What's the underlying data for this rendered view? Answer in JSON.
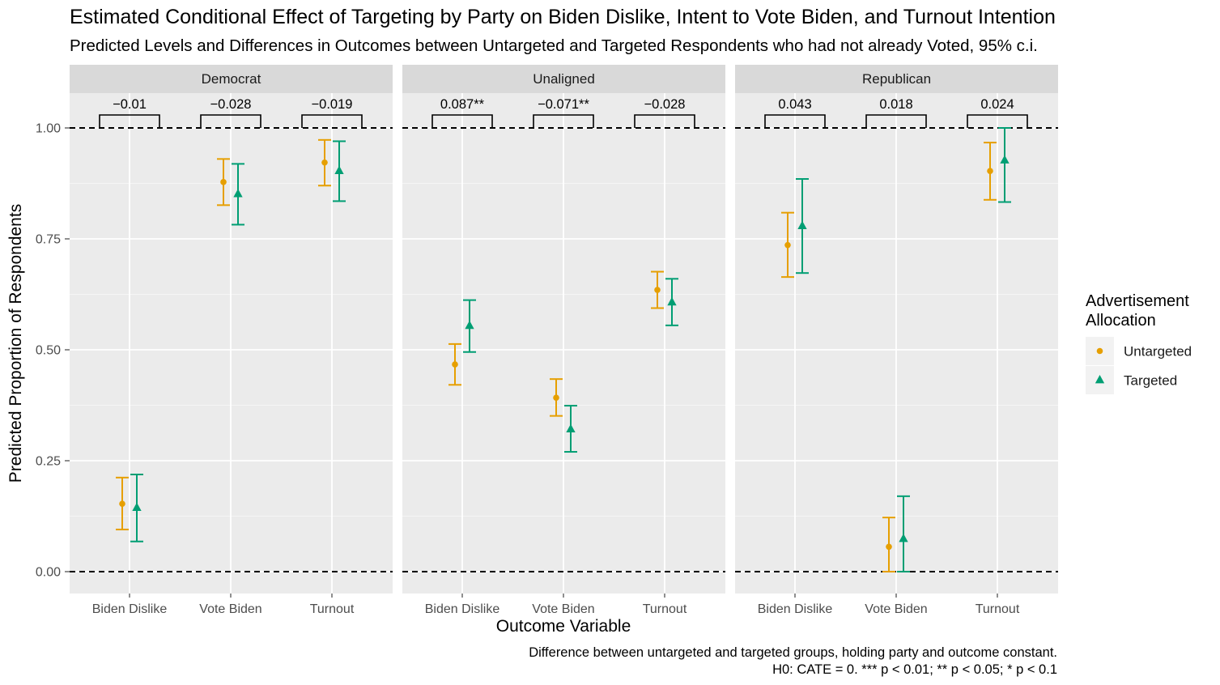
{
  "chart_data": {
    "type": "scatter",
    "title": "Estimated Conditional Effect of Targeting by Party on Biden Dislike, Intent to Vote Biden, and Turnout Intention",
    "subtitle": "Predicted Levels and Differences in Outcomes between Untargeted and Targeted Respondents who had not already Voted, 95% c.i.",
    "xlabel": "Outcome  Variable",
    "ylabel": "Predicted Proportion of Respondents",
    "ylim": [
      -0.05,
      1.07
    ],
    "yticks": [
      "0.00",
      "0.25",
      "0.50",
      "0.75",
      "1.00"
    ],
    "ytick_values": [
      0,
      0.25,
      0.5,
      0.75,
      1.0
    ],
    "reference_lines": [
      0,
      1
    ],
    "categories": [
      "Biden Dislike",
      "Vote Biden",
      "Turnout"
    ],
    "facets": [
      {
        "name": "Democrat",
        "differences": [
          "−0.01",
          "−0.028",
          "−0.019"
        ],
        "series": [
          {
            "name": "Untargeted",
            "values": [
              0.153,
              0.878,
              0.922
            ],
            "lower": [
              0.095,
              0.826,
              0.87
            ],
            "upper": [
              0.212,
              0.93,
              0.973
            ]
          },
          {
            "name": "Targeted",
            "values": [
              0.144,
              0.851,
              0.903
            ],
            "lower": [
              0.068,
              0.782,
              0.835
            ],
            "upper": [
              0.219,
              0.919,
              0.97
            ]
          }
        ]
      },
      {
        "name": "Unaligned",
        "differences": [
          "0.087**",
          "−0.071**",
          "−0.028"
        ],
        "series": [
          {
            "name": "Untargeted",
            "values": [
              0.467,
              0.392,
              0.635
            ],
            "lower": [
              0.421,
              0.351,
              0.594
            ],
            "upper": [
              0.513,
              0.434,
              0.676
            ]
          },
          {
            "name": "Targeted",
            "values": [
              0.554,
              0.321,
              0.607
            ],
            "lower": [
              0.495,
              0.27,
              0.555
            ],
            "upper": [
              0.612,
              0.374,
              0.66
            ]
          }
        ]
      },
      {
        "name": "Republican",
        "differences": [
          "0.043",
          "0.018",
          "0.024"
        ],
        "series": [
          {
            "name": "Untargeted",
            "values": [
              0.736,
              0.056,
              0.903
            ],
            "lower": [
              0.664,
              0.0,
              0.838
            ],
            "upper": [
              0.809,
              0.122,
              0.967
            ]
          },
          {
            "name": "Targeted",
            "values": [
              0.779,
              0.074,
              0.927
            ],
            "lower": [
              0.673,
              0.0,
              0.833
            ],
            "upper": [
              0.885,
              0.17,
              1.0
            ]
          }
        ]
      }
    ],
    "legend": {
      "title_lines": [
        "Advertisement",
        "Allocation"
      ],
      "position": "right",
      "entries": [
        {
          "name": "Untargeted",
          "shape": "circle",
          "color": "#E69F00"
        },
        {
          "name": "Targeted",
          "shape": "triangle",
          "color": "#009E73"
        }
      ]
    },
    "caption_lines": [
      "Difference between untargeted and targeted groups, holding party and outcome constant.",
      "H0: CATE = 0. *** p < 0.01; ** p < 0.05; * p < 0.1"
    ],
    "grid": true
  }
}
